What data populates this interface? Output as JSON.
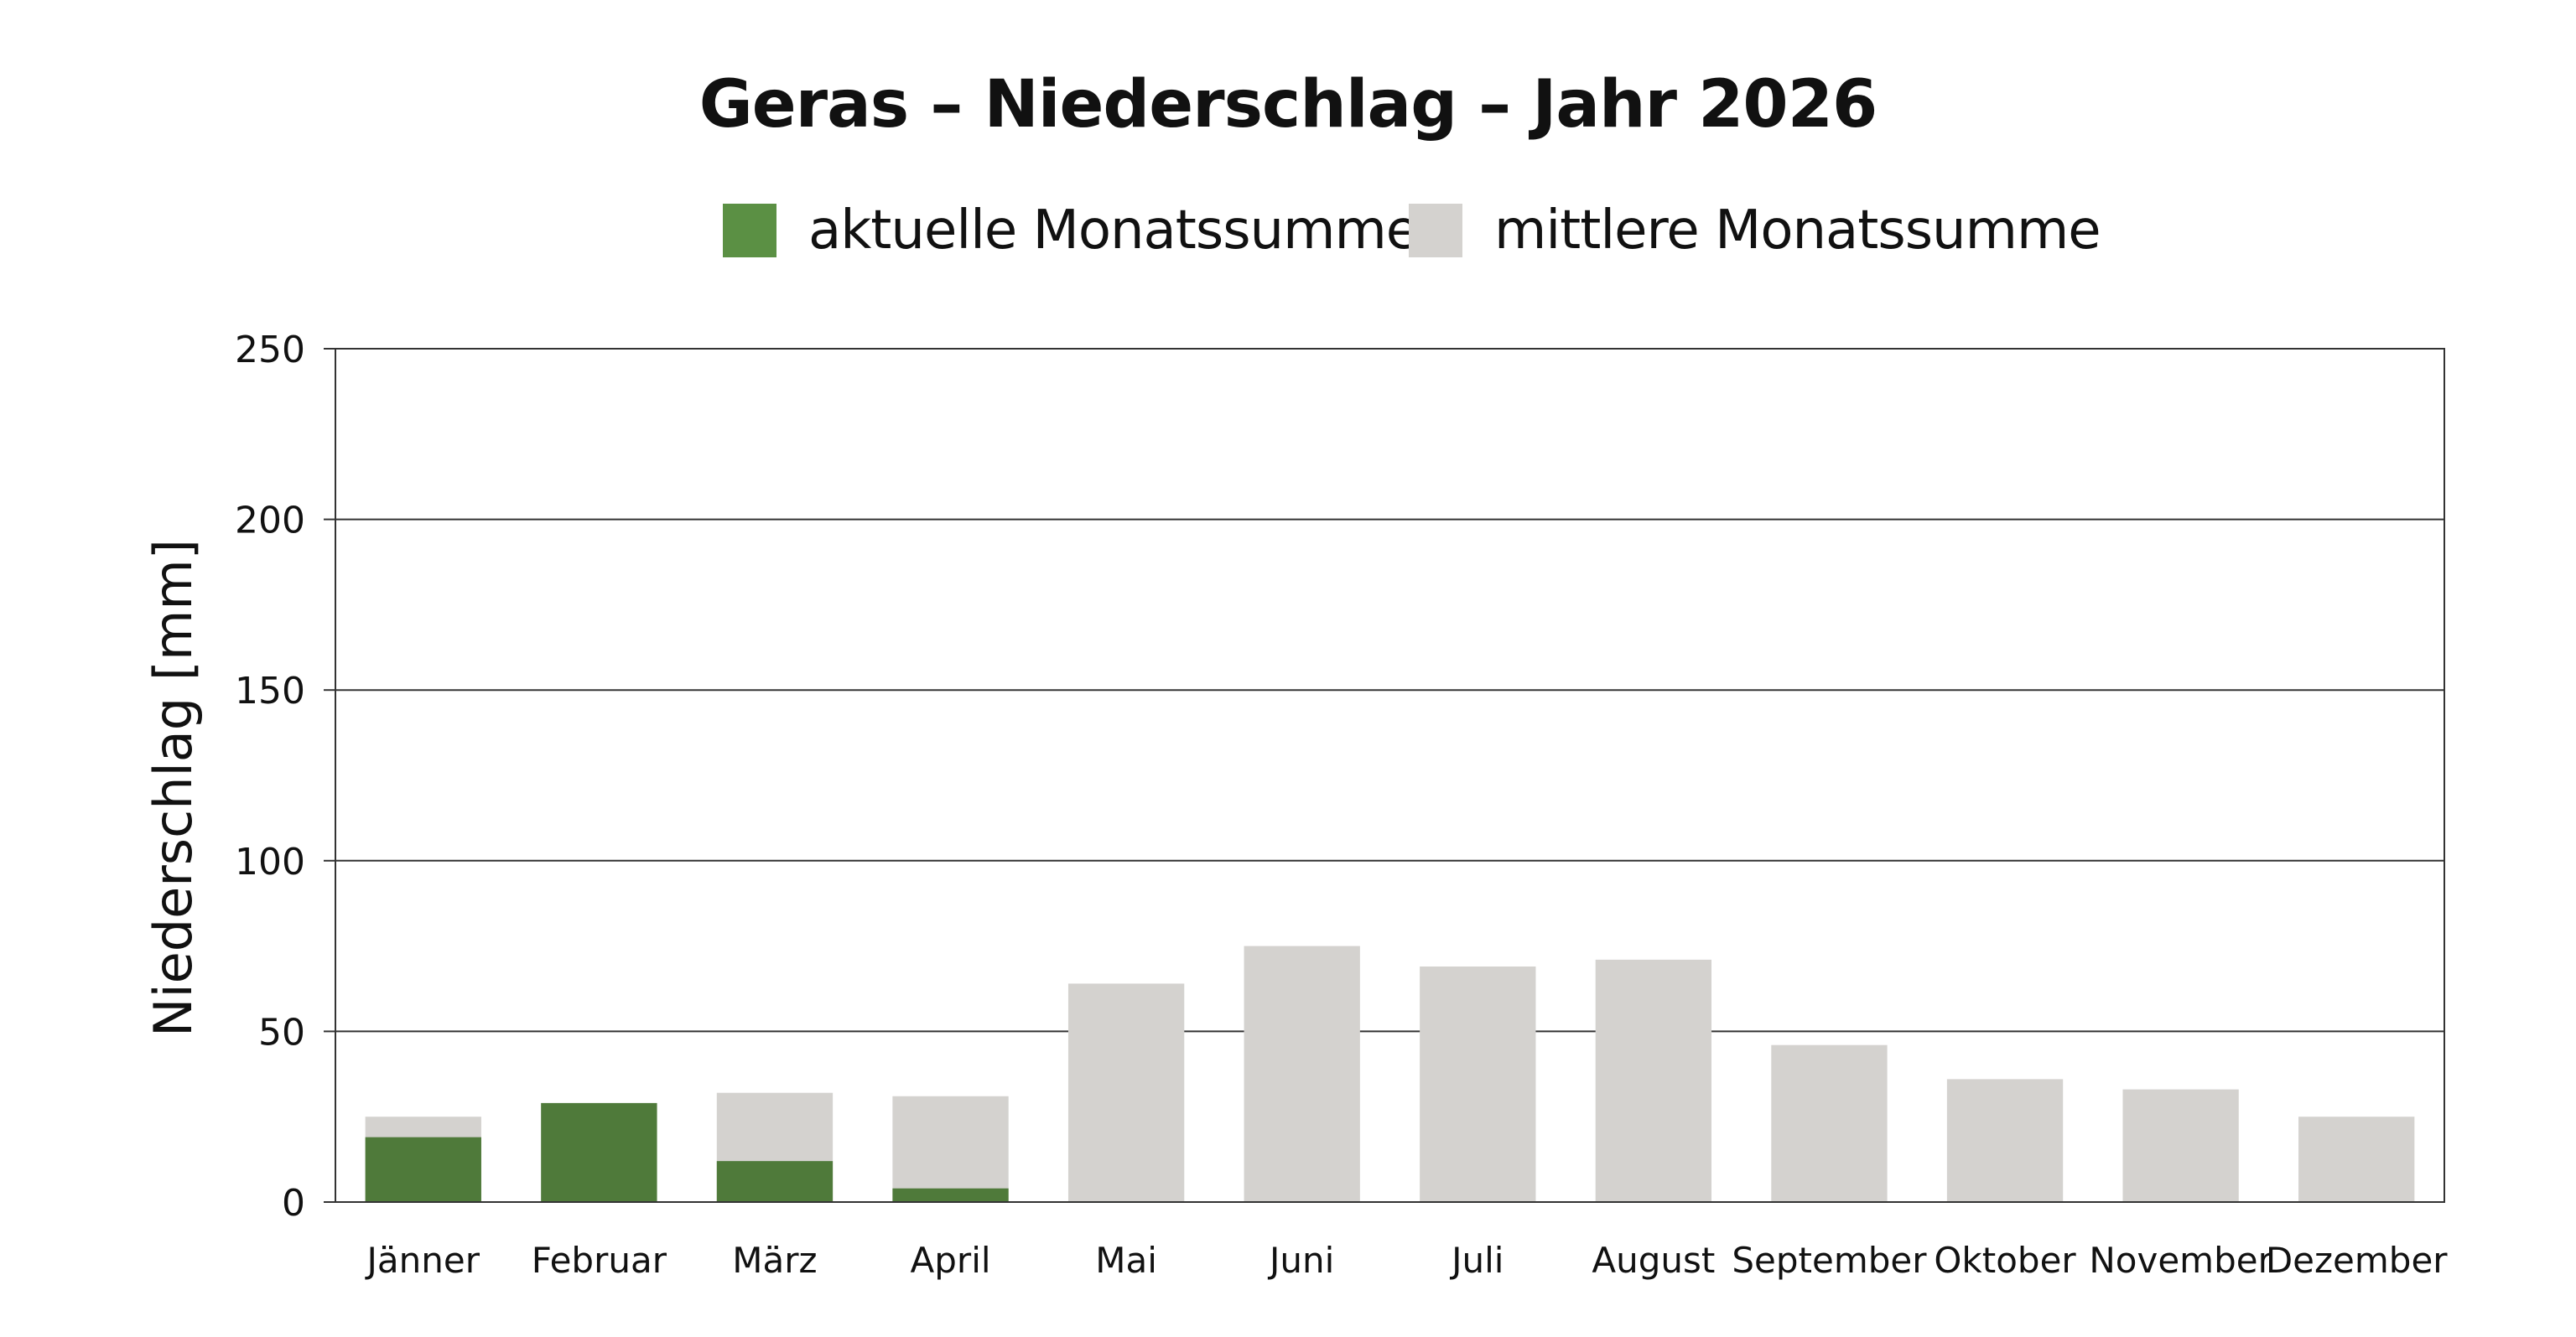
{
  "chart_data": {
    "type": "bar",
    "title": "Geras – Niederschlag – Jahr 2026",
    "xlabel": "",
    "ylabel": "Niederschlag [mm]",
    "ylim": [
      0,
      250
    ],
    "yticks": [
      "0",
      "50",
      "100",
      "150",
      "200",
      "250"
    ],
    "grid": true,
    "legend_position": "top",
    "categories": [
      "Jänner",
      "Februar",
      "März",
      "April",
      "Mai",
      "Juni",
      "Juli",
      "August",
      "September",
      "Oktober",
      "November",
      "Dezember"
    ],
    "series": [
      {
        "name": "mittlere Monatssumme",
        "color": "#d4d2cf",
        "values": [
          25,
          29,
          32,
          31,
          64,
          75,
          69,
          71,
          46,
          36,
          33,
          25
        ]
      },
      {
        "name": "aktuelle Monatssumme",
        "color": "#4f7a3a",
        "values": [
          19,
          29,
          12,
          4,
          null,
          null,
          null,
          null,
          null,
          null,
          null,
          null
        ]
      }
    ],
    "legend": [
      {
        "label": "aktuelle Monatssumme",
        "color": "#5b9044"
      },
      {
        "label": "mittlere Monatssumme",
        "color": "#d4d2cf"
      }
    ],
    "highlight_color": "#5b9044"
  }
}
